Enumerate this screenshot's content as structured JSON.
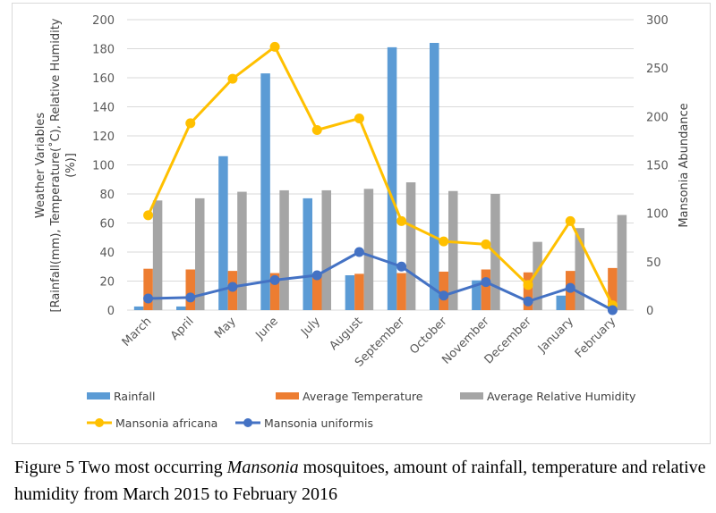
{
  "chart_data": {
    "type": "bar",
    "categories": [
      "March",
      "April",
      "May",
      "June",
      "July",
      "August",
      "September",
      "October",
      "November",
      "December",
      "January",
      "February"
    ],
    "ylabel_line1": "Weather Variables",
    "ylabel_line2": "[Rainfall(mm), Temperature(˚C), Relative Humidity",
    "ylabel_line3": "(%)]",
    "y2label": "Mansonia Abundance",
    "ylim": [
      0,
      200
    ],
    "y2lim": [
      0,
      300
    ],
    "yticks": [
      "0",
      "20",
      "40",
      "60",
      "80",
      "100",
      "120",
      "140",
      "160",
      "180",
      "200"
    ],
    "y2ticks": [
      "0",
      "50",
      "100",
      "150",
      "200",
      "250",
      "300"
    ],
    "grid": true,
    "legend_position": "bottom",
    "series": [
      {
        "name": "Rainfall",
        "type": "bar",
        "axis": "left",
        "color": "#5b9bd5",
        "values": [
          2.5,
          2.5,
          106,
          163,
          77,
          24,
          181,
          184,
          20.5,
          0,
          10,
          0
        ]
      },
      {
        "name": "Average Temperature",
        "type": "bar",
        "axis": "left",
        "color": "#ed7d31",
        "values": [
          28.5,
          28,
          27,
          25.5,
          25,
          25,
          25.5,
          26.5,
          28,
          26,
          27,
          29
        ]
      },
      {
        "name": "Average Relative Humidity",
        "type": "bar",
        "axis": "left",
        "color": "#a5a5a5",
        "values": [
          75.5,
          77,
          81.5,
          82.5,
          82.5,
          83.5,
          88,
          82,
          80,
          47,
          56.5,
          65.5
        ]
      },
      {
        "name": "Mansonia africana",
        "type": "line",
        "axis": "right",
        "color": "#ffc000",
        "values": [
          98,
          193,
          239,
          272,
          186,
          198,
          92,
          71,
          68,
          26,
          92,
          5
        ]
      },
      {
        "name": "Mansonia uniformis",
        "type": "line",
        "axis": "right",
        "color": "#4472c4",
        "values": [
          12,
          13,
          24,
          31,
          36,
          60,
          45,
          15,
          29,
          9,
          23,
          0
        ]
      }
    ]
  },
  "caption": {
    "prefix": "Figure 5 Two most occurring ",
    "italic": "Mansonia",
    "suffix": " mosquitoes, amount of rainfall, temperature and relative humidity from March 2015 to February 2016"
  }
}
